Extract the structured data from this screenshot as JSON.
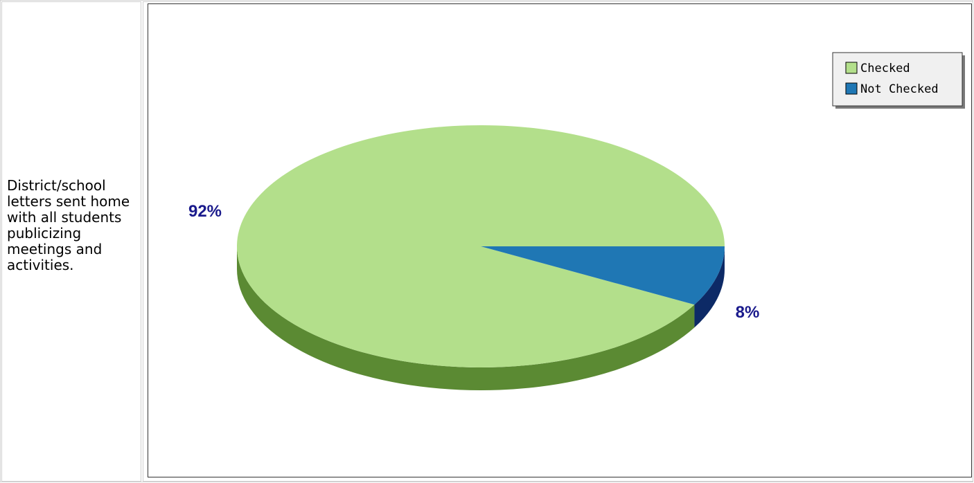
{
  "question": {
    "text": "District/school letters sent home with all students publicizing meetings and activities."
  },
  "chart_data": {
    "type": "pie",
    "title": "",
    "legend_position": "top-right",
    "slices": [
      {
        "name": "Checked",
        "value": 92,
        "label": "92%",
        "color": "#b3df8b",
        "side_color": "#5b8a33"
      },
      {
        "name": "Not Checked",
        "value": 8,
        "label": "8%",
        "color": "#1f77b4",
        "side_color": "#0d2a66"
      }
    ],
    "label_color": "#1a1a8c"
  }
}
